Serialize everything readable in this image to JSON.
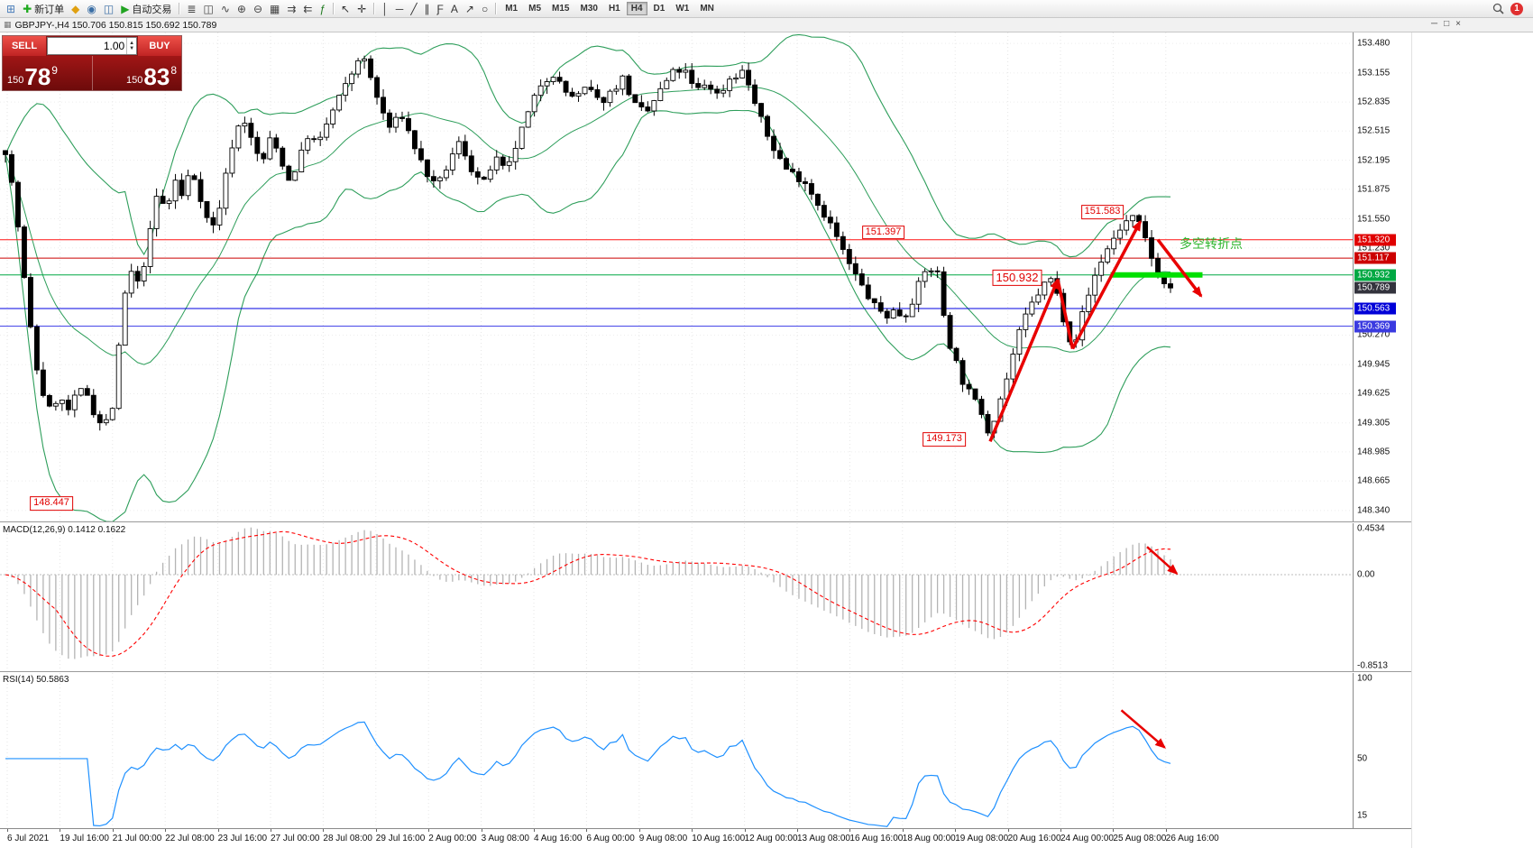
{
  "toolbar": {
    "groups": [
      {
        "items": [
          {
            "name": "new-chart-icon",
            "glyph": "⊞",
            "color": "#4a7ebb"
          },
          {
            "name": "new-order-button",
            "glyph": "✚",
            "color": "#1faa1f",
            "label": "新订单"
          },
          {
            "name": "market-watch-icon",
            "glyph": "◆",
            "color": "#e0a010"
          },
          {
            "name": "navigator-icon",
            "glyph": "◉",
            "color": "#3a6ea5"
          },
          {
            "name": "terminal-icon",
            "glyph": "◫",
            "color": "#3a6ea5"
          },
          {
            "name": "autotrading-button",
            "glyph": "▶",
            "color": "#21a321",
            "label": "自动交易"
          }
        ]
      },
      {
        "items": [
          {
            "name": "bars-chart-icon",
            "glyph": "≣",
            "color": "#444"
          },
          {
            "name": "candlestick-chart-icon",
            "glyph": "◫",
            "color": "#444"
          },
          {
            "name": "line-chart-icon",
            "glyph": "∿",
            "color": "#444"
          },
          {
            "name": "zoom-in-icon",
            "glyph": "⊕",
            "color": "#444"
          },
          {
            "name": "zoom-out-icon",
            "glyph": "⊖",
            "color": "#444"
          },
          {
            "name": "tile-windows-icon",
            "glyph": "▦",
            "color": "#444"
          },
          {
            "name": "auto-scroll-icon",
            "glyph": "⇉",
            "color": "#444"
          },
          {
            "name": "chart-shift-icon",
            "glyph": "⇇",
            "color": "#444"
          },
          {
            "name": "indicators-icon",
            "glyph": "ƒ",
            "color": "#1f7a1f"
          }
        ]
      },
      {
        "items": [
          {
            "name": "cursor-icon",
            "glyph": "↖",
            "color": "#333"
          },
          {
            "name": "crosshair-icon",
            "glyph": "✛",
            "color": "#333"
          }
        ]
      },
      {
        "items": [
          {
            "name": "vertical-line-icon",
            "glyph": "│",
            "color": "#333"
          },
          {
            "name": "horizontal-line-icon",
            "glyph": "─",
            "color": "#333"
          },
          {
            "name": "trendline-icon",
            "glyph": "╱",
            "color": "#333"
          },
          {
            "name": "channel-icon",
            "glyph": "∥",
            "color": "#333"
          },
          {
            "name": "fibonacci-icon",
            "glyph": "Ƒ",
            "color": "#333"
          },
          {
            "name": "text-icon",
            "glyph": "A",
            "color": "#333"
          },
          {
            "name": "arrow-tool-icon",
            "glyph": "↗",
            "color": "#333"
          },
          {
            "name": "shapes-icon",
            "glyph": "○",
            "color": "#333"
          }
        ]
      }
    ],
    "timeframes": {
      "items": [
        "M1",
        "M5",
        "M15",
        "M30",
        "H1",
        "H4",
        "D1",
        "W1",
        "MN"
      ],
      "active": "H4"
    },
    "notification_count": "1"
  },
  "chart_window": {
    "title": "GBPJPY-,H4  150.706 150.815 150.692 150.789",
    "window_controls": [
      "─",
      "□",
      "×"
    ]
  },
  "one_click": {
    "sell_label": "SELL",
    "buy_label": "BUY",
    "volume": "1.00",
    "sell": {
      "small": "150",
      "big": "78",
      "sup": "9"
    },
    "buy": {
      "small": "150",
      "big": "83",
      "sup": "8"
    }
  },
  "price_axis": {
    "plot_max": 153.6,
    "plot_min": 148.22,
    "labels": [
      "153.480",
      "153.155",
      "152.835",
      "152.515",
      "152.195",
      "151.875",
      "151.550",
      "151.230",
      "150.270",
      "149.945",
      "149.625",
      "149.305",
      "148.985",
      "148.665",
      "148.340"
    ],
    "flags": [
      {
        "text": "151.320",
        "color": "#e00000"
      },
      {
        "text": "151.117",
        "color": "#cc0000"
      },
      {
        "text": "150.932",
        "color": "#00a843"
      },
      {
        "text": "150.789",
        "color": "#33333d"
      },
      {
        "text": "150.563",
        "color": "#0000d8"
      },
      {
        "text": "150.369",
        "color": "#3a3ae0"
      }
    ]
  },
  "time_axis": {
    "first_tick_x": 8,
    "tick_spacing": 58.4,
    "labels": [
      "6 Jul 2021",
      "19 Jul 16:00",
      "21 Jul 00:00",
      "22 Jul 08:00",
      "23 Jul 16:00",
      "27 Jul 00:00",
      "28 Jul 08:00",
      "29 Jul 16:00",
      "2 Aug 00:00",
      "3 Aug 08:00",
      "4 Aug 16:00",
      "6 Aug 00:00",
      "9 Aug 08:00",
      "10 Aug 16:00",
      "12 Aug 00:00",
      "13 Aug 08:00",
      "16 Aug 16:00",
      "18 Aug 00:00",
      "19 Aug 08:00",
      "20 Aug 16:00",
      "24 Aug 00:00",
      "25 Aug 08:00",
      "26 Aug 16:00"
    ]
  },
  "macd_panel": {
    "header": "MACD(12,26,9) 0.1412 0.1622",
    "range": [
      -0.8513,
      0.4534
    ],
    "axis": [
      {
        "text": "0.4534",
        "value": 0.4534
      },
      {
        "text": "0.00",
        "value": 0
      },
      {
        "text": "-0.8513",
        "value": -0.8513
      }
    ]
  },
  "rsi_panel": {
    "header": "RSI(14) 50.5863",
    "scale_min": 7,
    "scale_max": 103,
    "axis": [
      {
        "text": "100",
        "value": 100
      },
      {
        "text": "50",
        "value": 50
      },
      {
        "text": "15",
        "value": 15
      }
    ]
  },
  "chart_data": {
    "type": "candlestick",
    "symbol": "GBPJPY-",
    "timeframe": "H4",
    "ohlc": {
      "open": "150.706",
      "high": "150.815",
      "low": "150.692",
      "close": "150.789"
    },
    "candle_count": 186,
    "candles_width_fraction": 0.868,
    "last_close": 150.789,
    "bull_color": "#ffffff",
    "bear_color": "#000000",
    "wick_color": "#000000",
    "bollinger": {
      "period": 20,
      "deviation": 2,
      "color": "#2e9e5b"
    },
    "macd": {
      "fast": 12,
      "slow": 26,
      "signal": 9,
      "histogram_color": "#b4b4b4",
      "signal_color": "#ff0000"
    },
    "rsi": {
      "period": 14,
      "color": "#1e90ff"
    },
    "close_anchors": [
      [
        0,
        152.3
      ],
      [
        0.004,
        152.05
      ],
      [
        0.01,
        151.55
      ],
      [
        0.017,
        150.8
      ],
      [
        0.024,
        150.1
      ],
      [
        0.03,
        149.7
      ],
      [
        0.038,
        149.45
      ],
      [
        0.046,
        149.6
      ],
      [
        0.053,
        149.42
      ],
      [
        0.06,
        149.58
      ],
      [
        0.068,
        149.7
      ],
      [
        0.076,
        149.42
      ],
      [
        0.084,
        149.25
      ],
      [
        0.092,
        149.48
      ],
      [
        0.1,
        150.45
      ],
      [
        0.106,
        151.05
      ],
      [
        0.112,
        150.78
      ],
      [
        0.118,
        151
      ],
      [
        0.125,
        151.45
      ],
      [
        0.131,
        151.88
      ],
      [
        0.138,
        151.6
      ],
      [
        0.145,
        152
      ],
      [
        0.152,
        151.78
      ],
      [
        0.159,
        152.12
      ],
      [
        0.166,
        151.85
      ],
      [
        0.173,
        151.55
      ],
      [
        0.18,
        151.45
      ],
      [
        0.188,
        151.95
      ],
      [
        0.196,
        152.45
      ],
      [
        0.204,
        152.68
      ],
      [
        0.212,
        152.38
      ],
      [
        0.22,
        152.15
      ],
      [
        0.228,
        152.45
      ],
      [
        0.236,
        152.22
      ],
      [
        0.244,
        151.95
      ],
      [
        0.252,
        152.2
      ],
      [
        0.26,
        152.48
      ],
      [
        0.268,
        152.35
      ],
      [
        0.276,
        152.6
      ],
      [
        0.285,
        152.85
      ],
      [
        0.295,
        153.08
      ],
      [
        0.305,
        153.38
      ],
      [
        0.313,
        153.12
      ],
      [
        0.321,
        152.8
      ],
      [
        0.33,
        152.55
      ],
      [
        0.34,
        152.7
      ],
      [
        0.35,
        152.38
      ],
      [
        0.36,
        152.08
      ],
      [
        0.37,
        151.88
      ],
      [
        0.38,
        152.15
      ],
      [
        0.39,
        152.4
      ],
      [
        0.4,
        152.1
      ],
      [
        0.41,
        151.92
      ],
      [
        0.42,
        152.22
      ],
      [
        0.43,
        152.05
      ],
      [
        0.44,
        152.42
      ],
      [
        0.45,
        152.75
      ],
      [
        0.46,
        153.05
      ],
      [
        0.47,
        153.15
      ],
      [
        0.48,
        152.95
      ],
      [
        0.49,
        152.88
      ],
      [
        0.5,
        153
      ],
      [
        0.51,
        152.82
      ],
      [
        0.52,
        152.95
      ],
      [
        0.53,
        153.1
      ],
      [
        0.54,
        152.8
      ],
      [
        0.55,
        152.7
      ],
      [
        0.56,
        152.92
      ],
      [
        0.572,
        153.15
      ],
      [
        0.582,
        153.2
      ],
      [
        0.592,
        152.95
      ],
      [
        0.602,
        153.05
      ],
      [
        0.612,
        152.9
      ],
      [
        0.622,
        153.1
      ],
      [
        0.634,
        153.18
      ],
      [
        0.645,
        152.75
      ],
      [
        0.656,
        152.4
      ],
      [
        0.67,
        152.1
      ],
      [
        0.687,
        151.95
      ],
      [
        0.698,
        151.7
      ],
      [
        0.71,
        151.45
      ],
      [
        0.722,
        151.1
      ],
      [
        0.733,
        150.85
      ],
      [
        0.745,
        150.6
      ],
      [
        0.756,
        150.48
      ],
      [
        0.764,
        150.55
      ],
      [
        0.771,
        150.45
      ],
      [
        0.78,
        150.7
      ],
      [
        0.788,
        150.95
      ],
      [
        0.795,
        151
      ],
      [
        0.802,
        150.92
      ],
      [
        0.807,
        150.3
      ],
      [
        0.814,
        150.05
      ],
      [
        0.822,
        149.75
      ],
      [
        0.83,
        149.58
      ],
      [
        0.838,
        149.42
      ],
      [
        0.843,
        149.22
      ],
      [
        0.847,
        149.3
      ],
      [
        0.852,
        149.5
      ],
      [
        0.858,
        149.72
      ],
      [
        0.864,
        150.02
      ],
      [
        0.871,
        150.32
      ],
      [
        0.878,
        150.55
      ],
      [
        0.886,
        150.72
      ],
      [
        0.893,
        150.85
      ],
      [
        0.899,
        150.9
      ],
      [
        0.906,
        150.55
      ],
      [
        0.913,
        150.25
      ],
      [
        0.917,
        150.15
      ],
      [
        0.923,
        150.45
      ],
      [
        0.93,
        150.72
      ],
      [
        0.937,
        151
      ],
      [
        0.945,
        151.2
      ],
      [
        0.952,
        151.35
      ],
      [
        0.96,
        151.5
      ],
      [
        0.968,
        151.56
      ],
      [
        0.975,
        151.45
      ],
      [
        0.982,
        151.18
      ],
      [
        0.989,
        150.95
      ],
      [
        0.995,
        150.82
      ],
      [
        1,
        150.789
      ]
    ],
    "horizontal_lines": [
      {
        "price": 151.32,
        "color": "#ff1414",
        "width": 1
      },
      {
        "price": 151.117,
        "color": "#cc0000",
        "width": 1
      },
      {
        "price": 150.932,
        "color": "#00a843",
        "width": 1
      },
      {
        "price": 150.563,
        "color": "#0000e0",
        "width": 1
      },
      {
        "price": 150.369,
        "color": "#4848e8",
        "width": 1
      }
    ],
    "green_segment": {
      "x1": 0.821,
      "x2": 0.889,
      "price": 150.932,
      "color": "#00e000",
      "width": 6
    },
    "price_labels": [
      {
        "text": "151.397",
        "x": 0.653,
        "price": 151.4,
        "size": 11
      },
      {
        "text": "151.583",
        "x": 0.815,
        "price": 151.62,
        "size": 11
      },
      {
        "text": "150.932",
        "x": 0.752,
        "price": 150.9,
        "size": 13
      },
      {
        "text": "149.173",
        "x": 0.698,
        "price": 149.12,
        "size": 11
      },
      {
        "text": "148.447",
        "x": 0.038,
        "price": 148.42,
        "size": 11
      }
    ],
    "turning_point": {
      "text": "多空转折点",
      "x": 0.872,
      "price": 151.28
    },
    "arrows": [
      {
        "panel": "main",
        "points": [
          [
            0.732,
            149.1
          ],
          [
            0.782,
            150.88
          ]
        ],
        "head": true,
        "w": 3.5
      },
      {
        "panel": "main",
        "points": [
          [
            0.782,
            150.88
          ],
          [
            0.793,
            150.12
          ]
        ],
        "head": false,
        "w": 3.5
      },
      {
        "panel": "main",
        "points": [
          [
            0.793,
            150.12
          ],
          [
            0.843,
            151.52
          ]
        ],
        "head": true,
        "w": 3.5
      },
      {
        "panel": "main",
        "points": [
          [
            0.856,
            151.32
          ],
          [
            0.888,
            150.7
          ]
        ],
        "head": true,
        "w": 3.5
      },
      {
        "panel": "macd",
        "points": [
          [
            0.848,
            0.16
          ],
          [
            0.87,
            0.34
          ]
        ],
        "head": true,
        "w": 2.5
      },
      {
        "panel": "rsi",
        "points": [
          [
            0.829,
            0.24
          ],
          [
            0.861,
            0.48
          ]
        ],
        "head": true,
        "w": 2.5
      }
    ]
  }
}
